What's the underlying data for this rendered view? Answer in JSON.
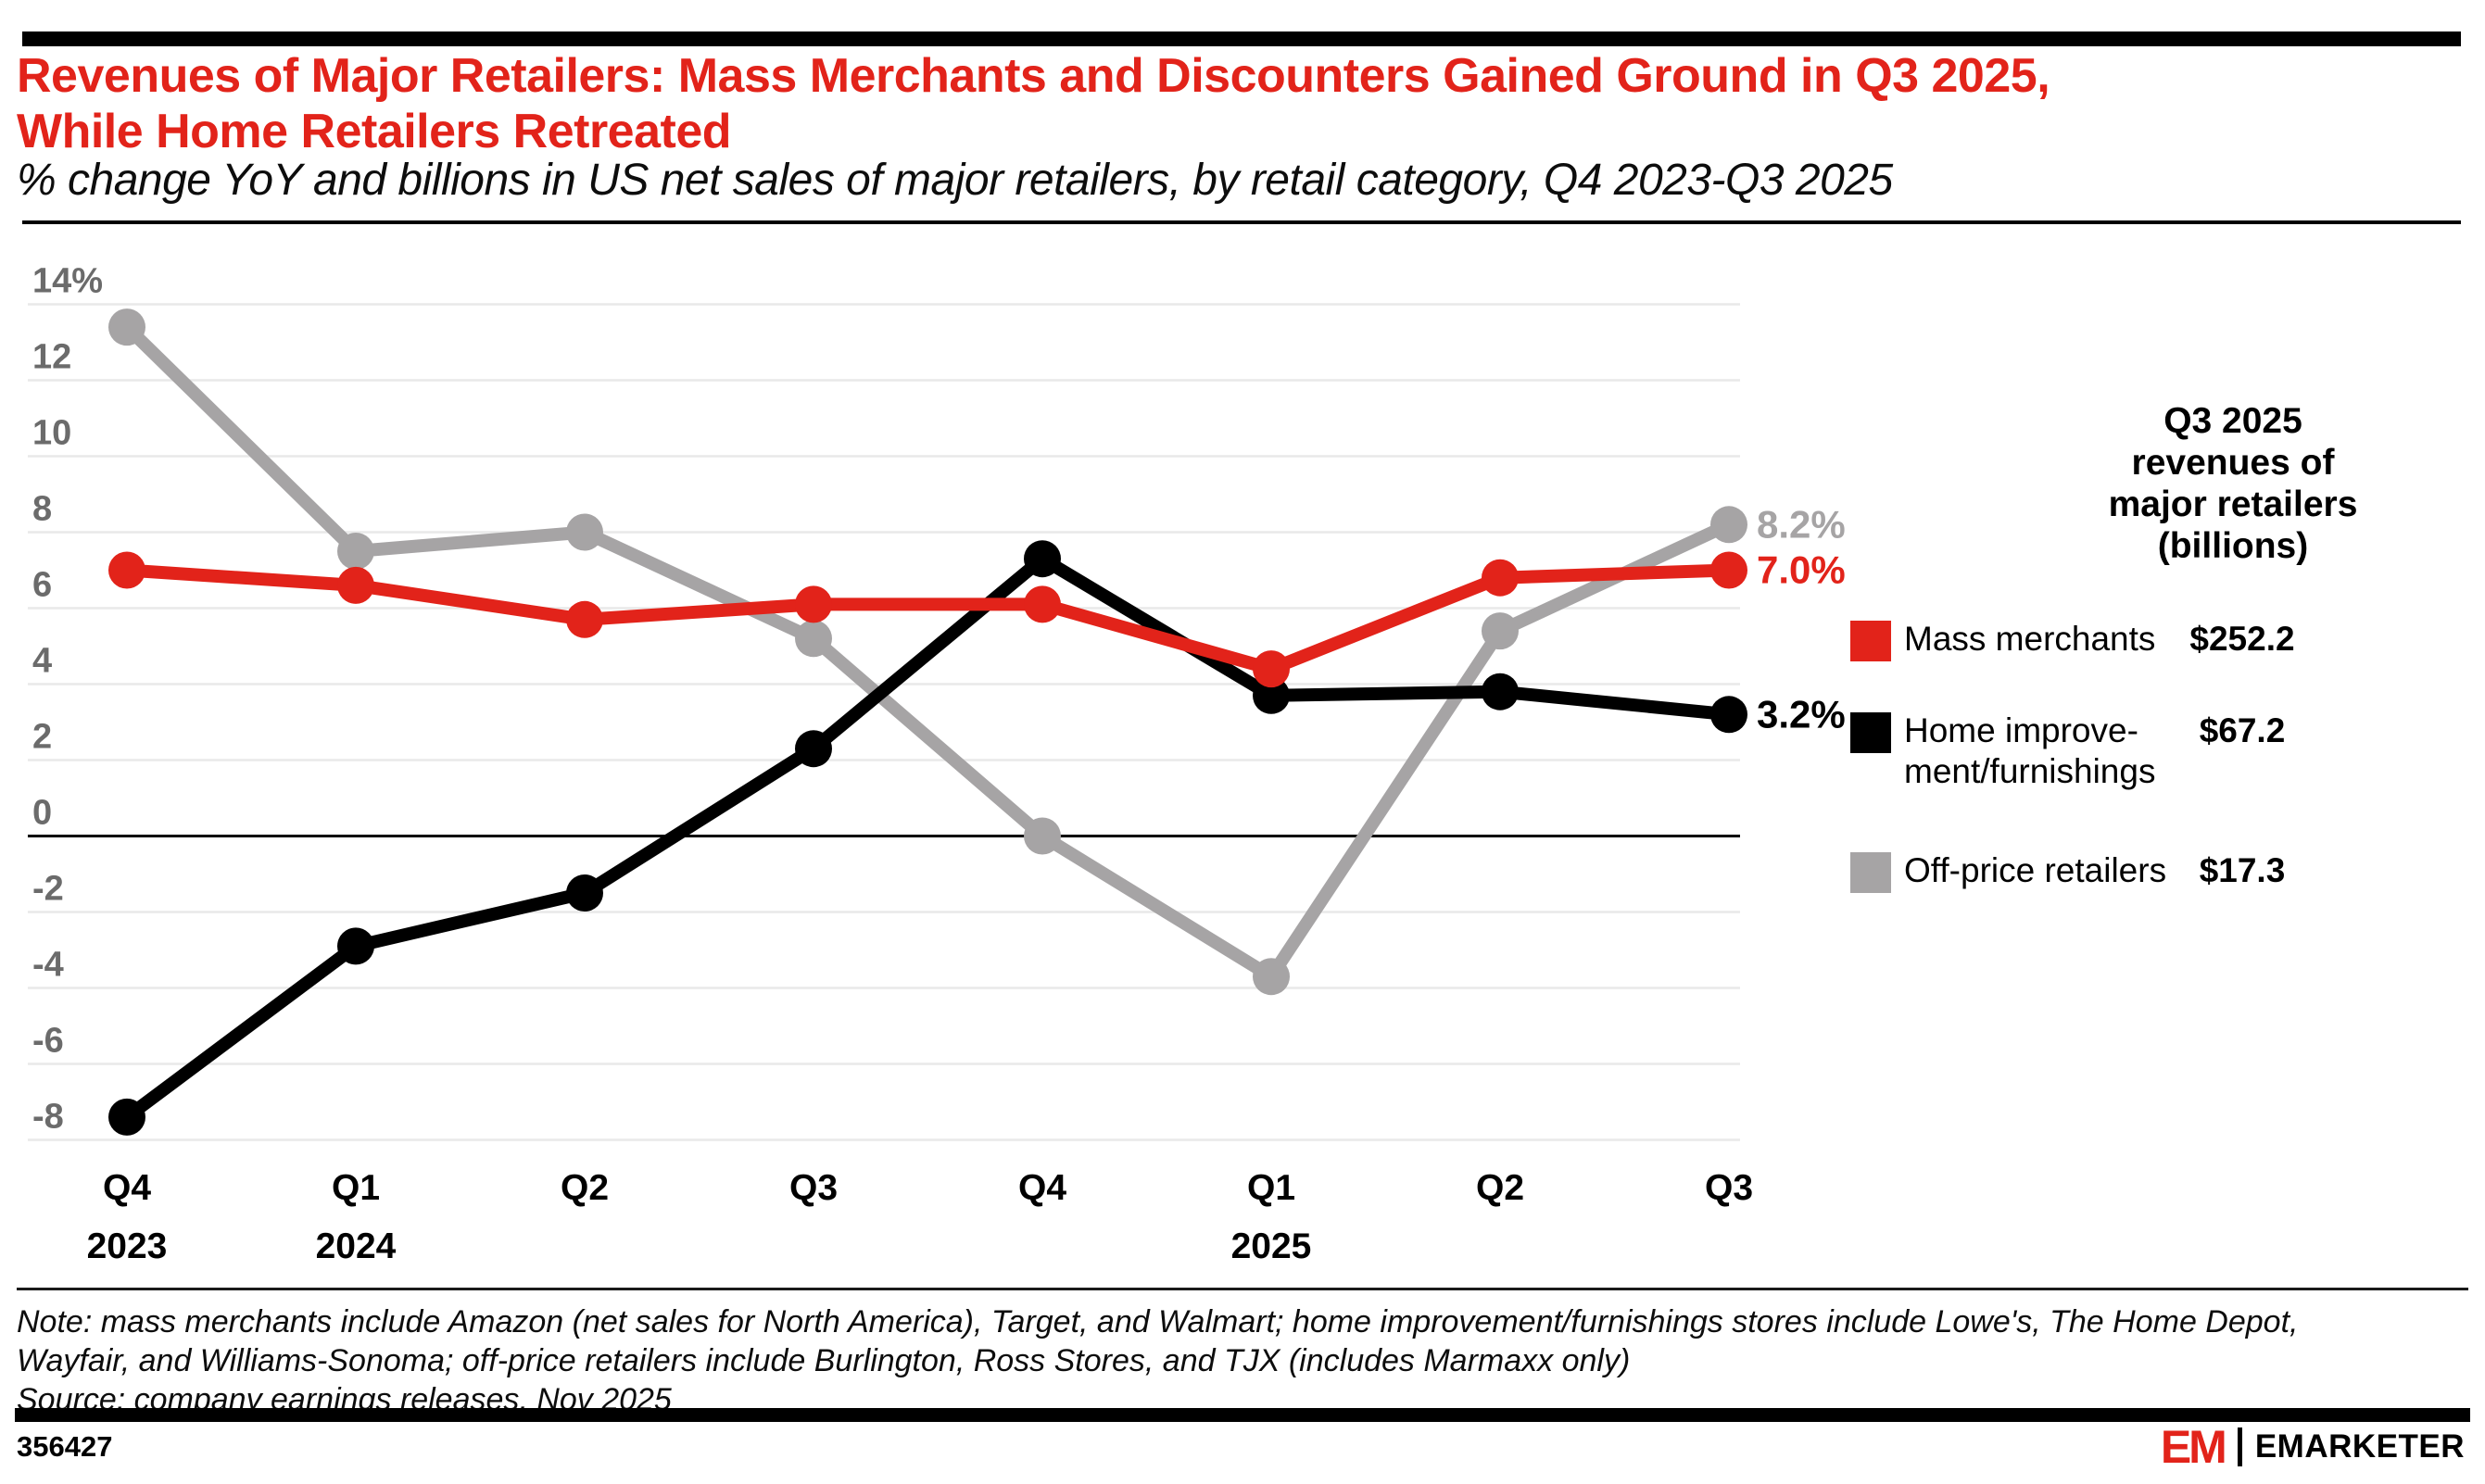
{
  "header": {
    "title_line1": "Revenues of Major Retailers: Mass Merchants and Discounters Gained Ground in Q3 2025,",
    "title_line2": "While Home Retailers Retreated",
    "subtitle": "% change YoY and billions in US net sales of major retailers, by retail category, Q4 2023-Q3 2025"
  },
  "theme": {
    "accent_red": "#E2231A",
    "series_black": "#000000",
    "series_gray": "#A6A4A5",
    "gridline": "#e9e9e9",
    "axis_label_gray": "#6b6b6b"
  },
  "chart_data": {
    "type": "line",
    "categories": [
      "Q4 2023",
      "Q1 2024",
      "Q2 2024",
      "Q3 2024",
      "Q4 2024",
      "Q1 2025",
      "Q2 2025",
      "Q3 2025"
    ],
    "series": [
      {
        "name": "Mass merchants",
        "color": "#E2231A",
        "values": [
          7.0,
          6.6,
          5.7,
          6.1,
          6.1,
          4.4,
          6.8,
          7.0
        ],
        "end_label": "7.0%"
      },
      {
        "name": "Home improvement/furnishings",
        "color": "#000000",
        "values": [
          -7.4,
          -2.9,
          -1.5,
          2.3,
          7.3,
          3.7,
          3.8,
          3.2
        ],
        "end_label": "3.2%"
      },
      {
        "name": "Off-price retailers",
        "color": "#A6A4A5",
        "values": [
          13.4,
          7.5,
          8.0,
          5.2,
          0.0,
          -3.7,
          5.4,
          8.2
        ],
        "end_label": "8.2%"
      }
    ],
    "y_axis": {
      "min": -8,
      "max": 14,
      "step": 2,
      "top_tick_label": "14%"
    },
    "x_year_rows": {
      "0": "2023",
      "1": "2024",
      "5": "2025"
    },
    "grid": true,
    "legend_position": "right"
  },
  "legend": {
    "header_lines": [
      "Q3 2025",
      "revenues of",
      "major retailers",
      "(billions)"
    ],
    "items": [
      {
        "label": "Mass merchants",
        "label_lines": [
          "Mass merchants"
        ],
        "value": "$252.2",
        "color": "#E2231A"
      },
      {
        "label": "Home improvement/furnishings",
        "label_lines": [
          "Home improve-",
          "ment/furnishings"
        ],
        "value": "$67.2",
        "color": "#000000"
      },
      {
        "label": "Off-price retailers",
        "label_lines": [
          "Off-price retailers"
        ],
        "value": "$17.3",
        "color": "#A6A4A5"
      }
    ]
  },
  "footer": {
    "note_line1": "Note: mass merchants include Amazon (net sales for North America), Target, and Walmart; home improvement/furnishings stores include Lowe's, The Home Depot,",
    "note_line2": "Wayfair, and Williams-Sonoma; off-price retailers include Burlington, Ross Stores, and TJX (includes Marmaxx only)",
    "source": "Source: company earnings releases, Nov 2025"
  },
  "footbar": {
    "chart_id": "356427",
    "logo_mark": "EM",
    "brand": "EMARKETER"
  }
}
